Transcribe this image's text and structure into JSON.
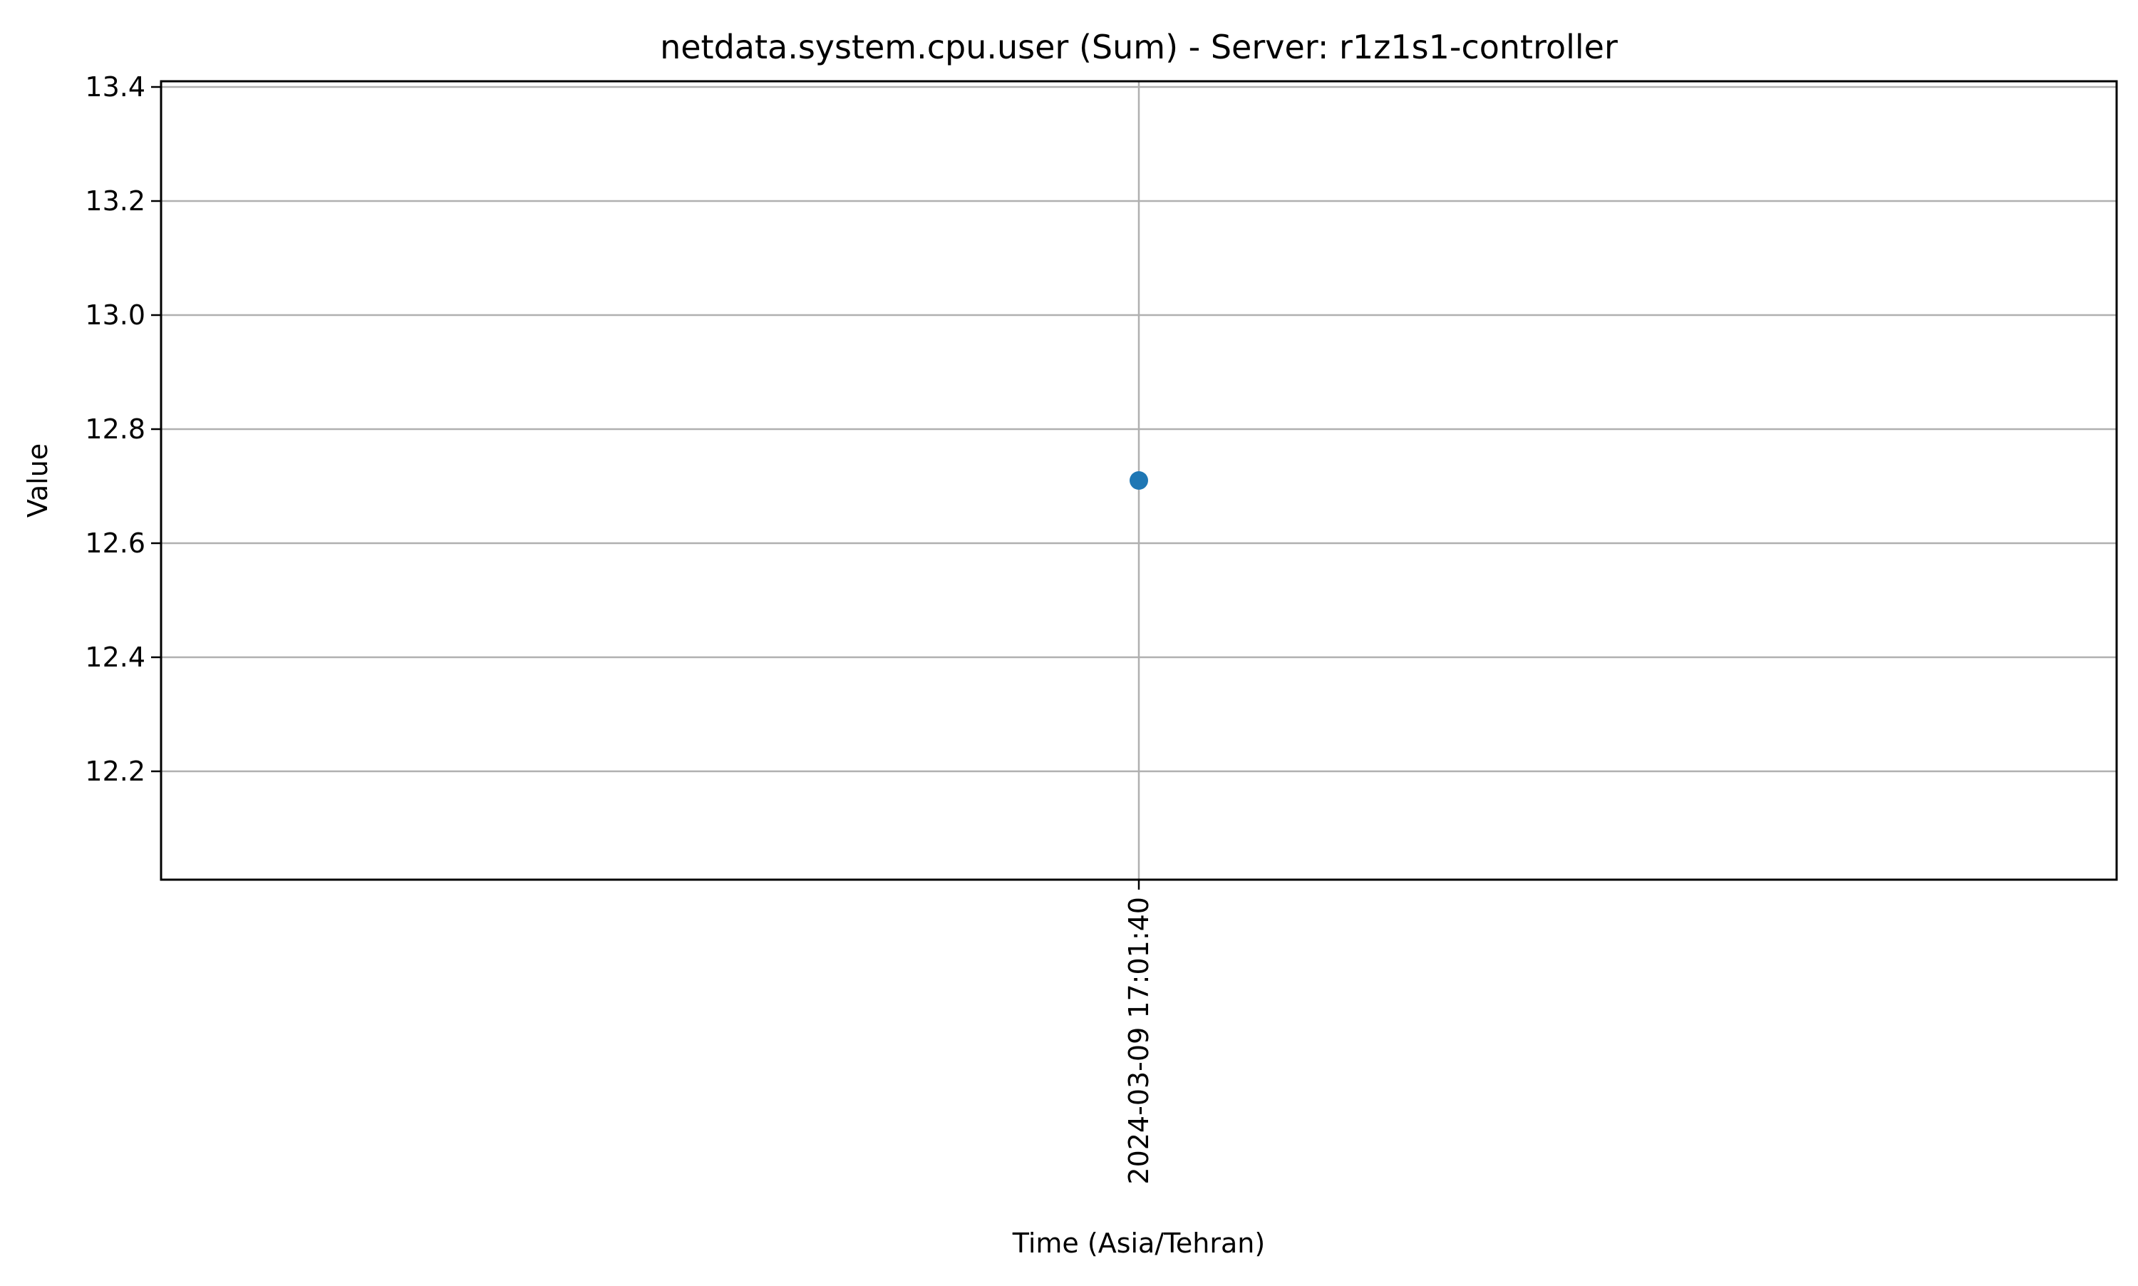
{
  "chart_data": {
    "type": "scatter",
    "title": "netdata.system.cpu.user (Sum) - Server: r1z1s1-controller",
    "xlabel": "Time (Asia/Tehran)",
    "ylabel": "Value",
    "x_ticks": [
      "2024-03-09 17:01:40"
    ],
    "y_ticks": [
      "12.2",
      "12.4",
      "12.6",
      "12.8",
      "13.0",
      "13.2",
      "13.4"
    ],
    "ylim": [
      12.01,
      13.41
    ],
    "grid": true,
    "series": [
      {
        "color": "#1f77b4",
        "points": [
          {
            "x": "2024-03-09 17:01:40",
            "y": 12.71
          }
        ]
      }
    ]
  }
}
